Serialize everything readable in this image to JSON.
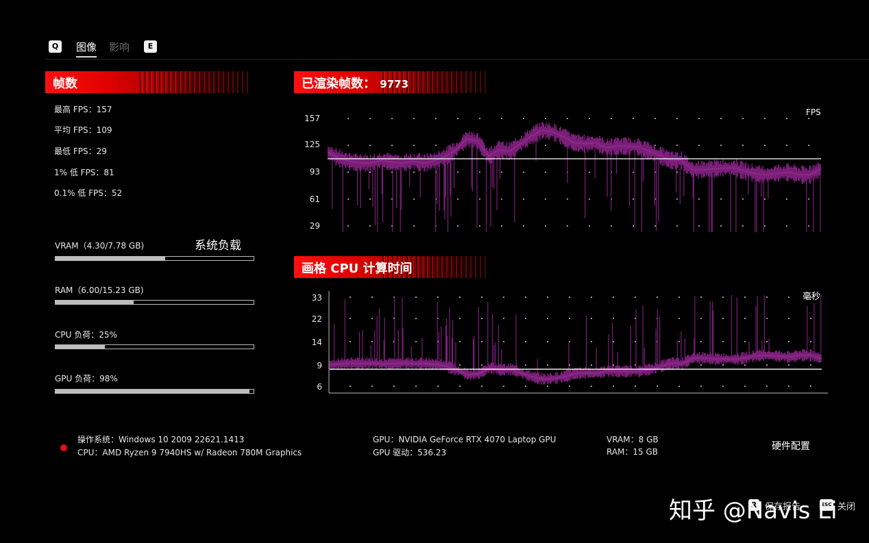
{
  "tabs": {
    "left_key": "Q",
    "right_key": "E",
    "items": [
      {
        "label": "图像",
        "active": true
      },
      {
        "label": "影响",
        "active": false
      }
    ]
  },
  "fps_panel": {
    "title": "帧数",
    "stats": [
      "最高 FPS：157",
      "平均 FPS：109",
      "最低 FPS：29",
      "1% 低 FPS：81",
      "0.1% 低 FPS：52"
    ]
  },
  "system_load": {
    "title": "系统负载",
    "bars": [
      {
        "label": "VRAM（4.30/7.78 GB)",
        "fraction": 0.553
      },
      {
        "label": "RAM（6.00/15.23 GB)",
        "fraction": 0.394
      },
      {
        "label": "CPU 负荷：25%",
        "fraction": 0.25
      },
      {
        "label": "GPU 负荷：98%",
        "fraction": 0.98
      }
    ]
  },
  "fps_chart": {
    "title": "已渲染帧数：",
    "count": "9773",
    "unit": "FPS",
    "ticks": [
      "157",
      "125",
      "93",
      "61",
      "29"
    ]
  },
  "frametime_chart": {
    "title": "画格 CPU 计算时间",
    "unit": "毫秒",
    "ticks": [
      "33",
      "22",
      "14",
      "9",
      "6"
    ]
  },
  "chart_data": [
    {
      "type": "line",
      "title": "已渲染帧数：9773",
      "ylabel": "FPS",
      "yticks": [
        157,
        125,
        93,
        61,
        29
      ],
      "ylim": [
        29,
        157
      ],
      "reference_line": 109,
      "series_color": "#7a1f78",
      "series": [
        {
          "values": [
            117,
            110,
            106,
            104,
            104,
            107,
            105,
            104,
            106,
            104,
            107,
            112,
            120,
            133,
            130,
            112,
            120,
            118,
            127,
            136,
            143,
            141,
            135,
            128,
            127,
            128,
            122,
            124,
            124,
            123,
            118,
            113,
            107,
            107,
            96,
            96,
            97,
            98,
            98,
            94,
            91,
            90,
            92,
            93,
            90,
            90,
            97
          ]
        }
      ]
    },
    {
      "type": "line",
      "title": "画格 CPU 计算时间",
      "ylabel": "毫秒",
      "yticks": [
        33,
        22,
        14,
        9,
        6
      ],
      "reference_line": 8.4,
      "series_color": "#7a1f78",
      "series": [
        {
          "values": [
            9.0,
            9.2,
            9.4,
            9.3,
            9.4,
            9.2,
            9.3,
            9.4,
            9.3,
            9.3,
            9.1,
            8.8,
            8.2,
            7.6,
            7.8,
            8.6,
            8.3,
            8.4,
            7.8,
            7.3,
            7.0,
            7.1,
            7.4,
            7.8,
            7.9,
            7.8,
            8.2,
            8.1,
            8.1,
            8.1,
            8.4,
            8.8,
            9.4,
            9.3,
            10.5,
            10.5,
            10.3,
            10.3,
            10.2,
            10.6,
            11.0,
            11.1,
            10.9,
            10.7,
            11.1,
            11.1,
            10.3
          ]
        }
      ]
    }
  ],
  "system_info": {
    "os": "操作系统：Windows 10 2009 22621.1413",
    "cpu": "CPU：AMD Ryzen 9 7940HS w/ Radeon 780M Graphics",
    "gpu": "GPU：NVIDIA GeForce RTX 4070 Laptop GPU",
    "gpu_driver": "GPU 驱动：536.23",
    "vram": "VRAM：8 GB",
    "ram": "RAM：15 GB",
    "hardware_config": "硬件配置",
    "status_color": "#e01010"
  },
  "footer": {
    "save_key": "R",
    "save_label": "保存报告",
    "close_key": "ESC",
    "close_label": "关闭",
    "watermark": "知乎 @Navis Li"
  }
}
